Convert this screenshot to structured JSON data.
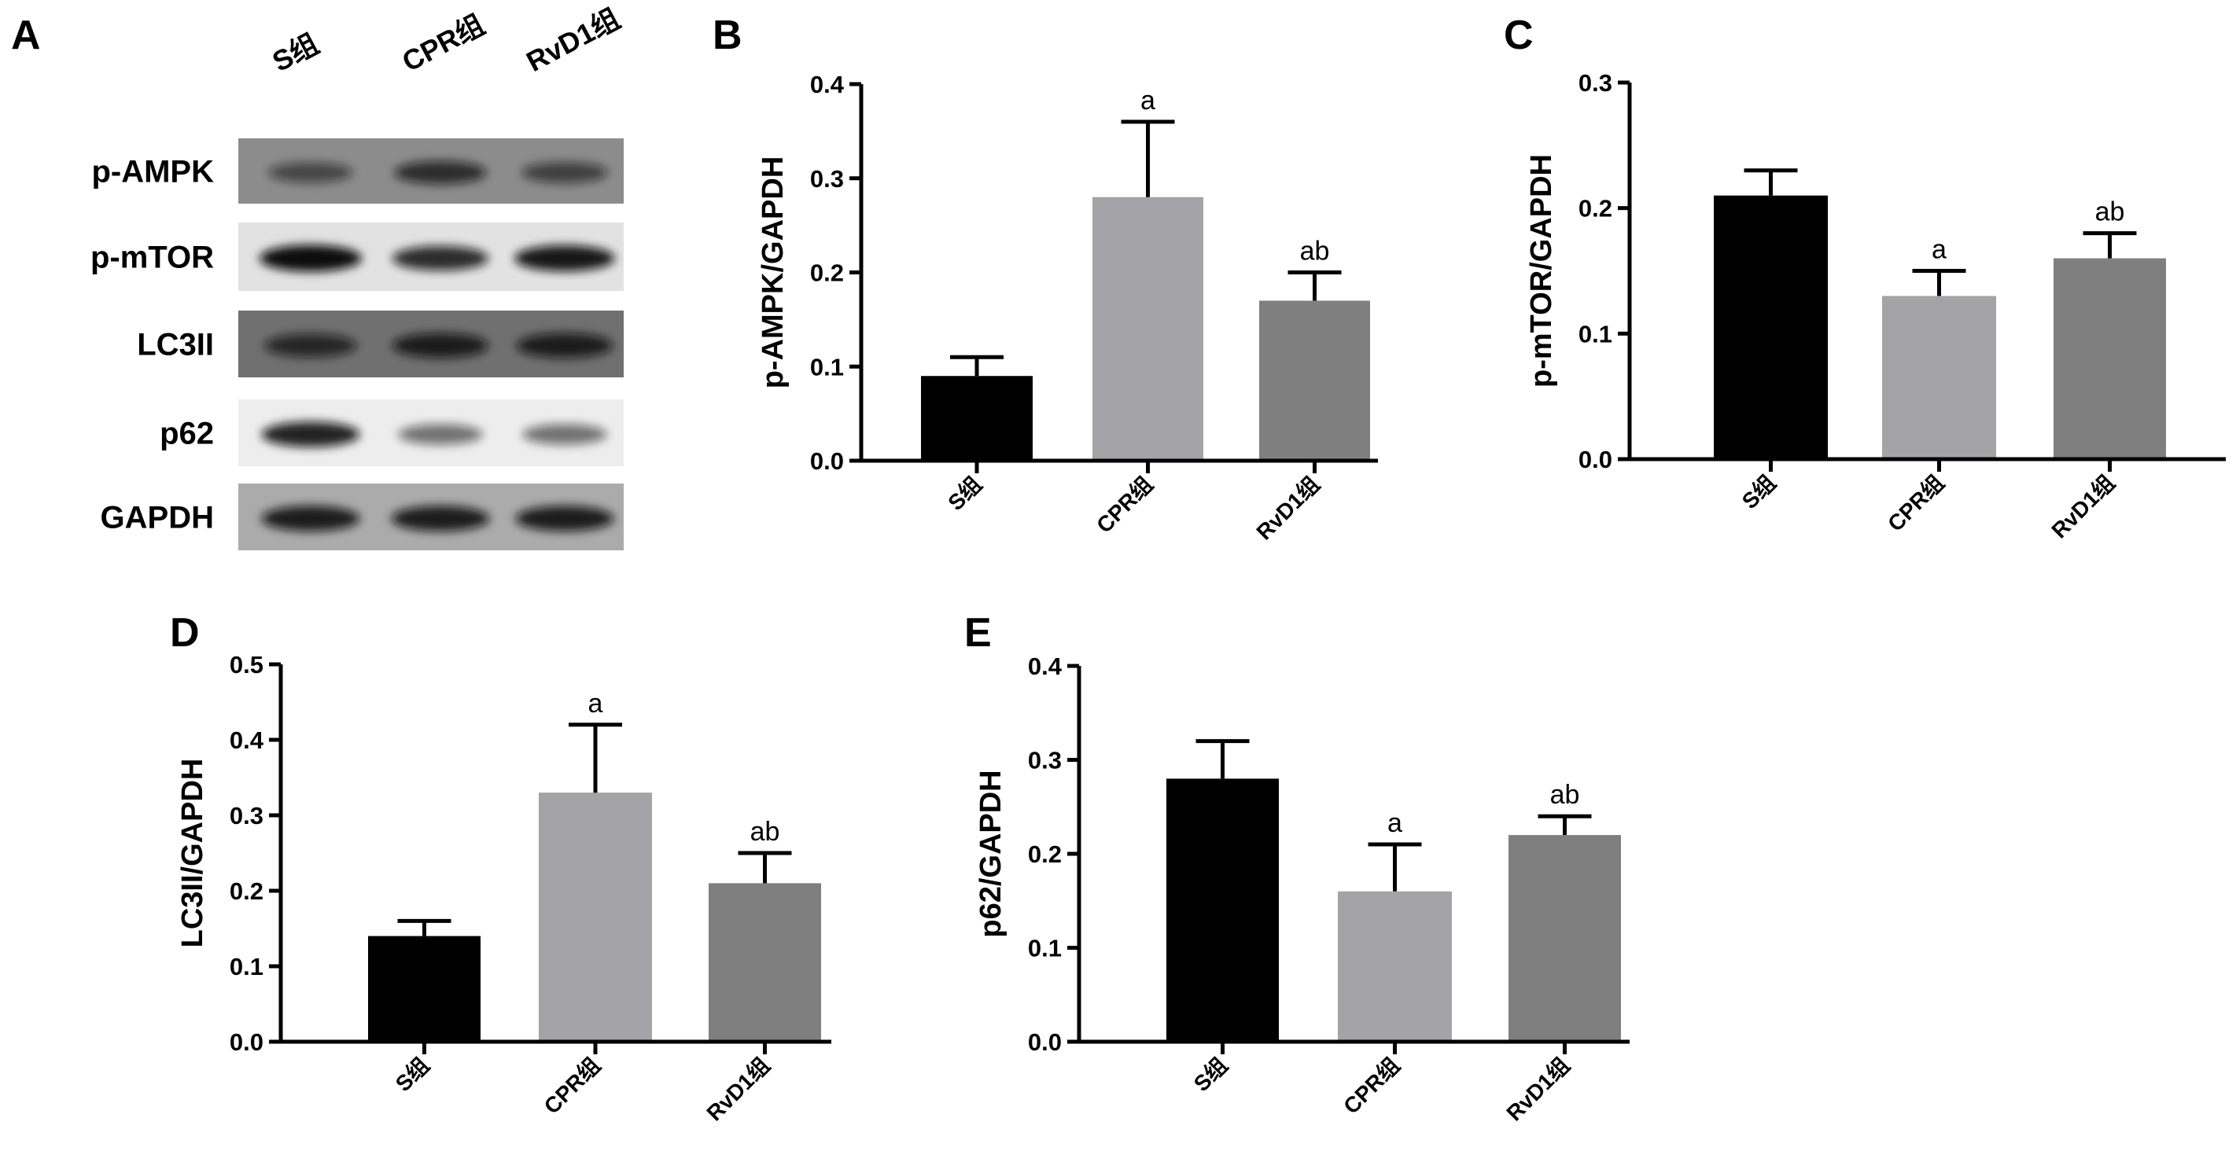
{
  "panel_labels": [
    "A",
    "B",
    "C",
    "D",
    "E"
  ],
  "blot": {
    "lanes": [
      "S组",
      "CPR组",
      "RvD1组"
    ],
    "rows": [
      {
        "label": "p-AMPK",
        "background": "#8c8c8c",
        "band_intensity": [
          0.55,
          0.75,
          0.6
        ]
      },
      {
        "label": "p-mTOR",
        "background": "#e2e2e2",
        "band_intensity": [
          1.0,
          0.85,
          0.95
        ]
      },
      {
        "label": "LC3II",
        "background": "#707070",
        "band_intensity": [
          0.75,
          0.85,
          0.85
        ]
      },
      {
        "label": "p62",
        "background": "#ededed",
        "band_intensity": [
          0.9,
          0.55,
          0.55
        ]
      },
      {
        "label": "GAPDH",
        "background": "#ababab",
        "band_intensity": [
          0.9,
          0.9,
          0.9
        ]
      }
    ]
  },
  "colors": {
    "S": "#000000",
    "CPR": "#a3a3a8",
    "RvD1": "#7f7f7f"
  },
  "chart_data": [
    {
      "panel": "B",
      "type": "bar",
      "categories": [
        "S组",
        "CPR组",
        "RvD1组"
      ],
      "values": [
        0.09,
        0.28,
        0.17
      ],
      "errors": [
        0.02,
        0.08,
        0.03
      ],
      "annotations": [
        "",
        "a",
        "ab"
      ],
      "ylabel": "p-AMPK/GAPDH",
      "ylim": [
        0,
        0.4
      ],
      "yticks": [
        "0.0",
        "0.1",
        "0.2",
        "0.3",
        "0.4"
      ]
    },
    {
      "panel": "C",
      "type": "bar",
      "categories": [
        "S组",
        "CPR组",
        "RvD1组"
      ],
      "values": [
        0.21,
        0.13,
        0.16
      ],
      "errors": [
        0.02,
        0.02,
        0.02
      ],
      "annotations": [
        "",
        "a",
        "ab"
      ],
      "ylabel": "p-mTOR/GAPDH",
      "ylim": [
        0,
        0.3
      ],
      "yticks": [
        "0.0",
        "0.1",
        "0.2",
        "0.3"
      ]
    },
    {
      "panel": "D",
      "type": "bar",
      "categories": [
        "S组",
        "CPR组",
        "RvD1组"
      ],
      "values": [
        0.14,
        0.33,
        0.21
      ],
      "errors": [
        0.02,
        0.09,
        0.04
      ],
      "annotations": [
        "",
        "a",
        "ab"
      ],
      "ylabel": "LC3II/GAPDH",
      "ylim": [
        0,
        0.5
      ],
      "yticks": [
        "0.0",
        "0.1",
        "0.2",
        "0.3",
        "0.4",
        "0.5"
      ]
    },
    {
      "panel": "E",
      "type": "bar",
      "categories": [
        "S组",
        "CPR组",
        "RvD1组"
      ],
      "values": [
        0.28,
        0.16,
        0.22
      ],
      "errors": [
        0.04,
        0.05,
        0.02
      ],
      "annotations": [
        "",
        "a",
        "ab"
      ],
      "ylabel": "p62/GAPDH",
      "ylim": [
        0,
        0.4
      ],
      "yticks": [
        "0.0",
        "0.1",
        "0.2",
        "0.3",
        "0.4"
      ]
    }
  ]
}
